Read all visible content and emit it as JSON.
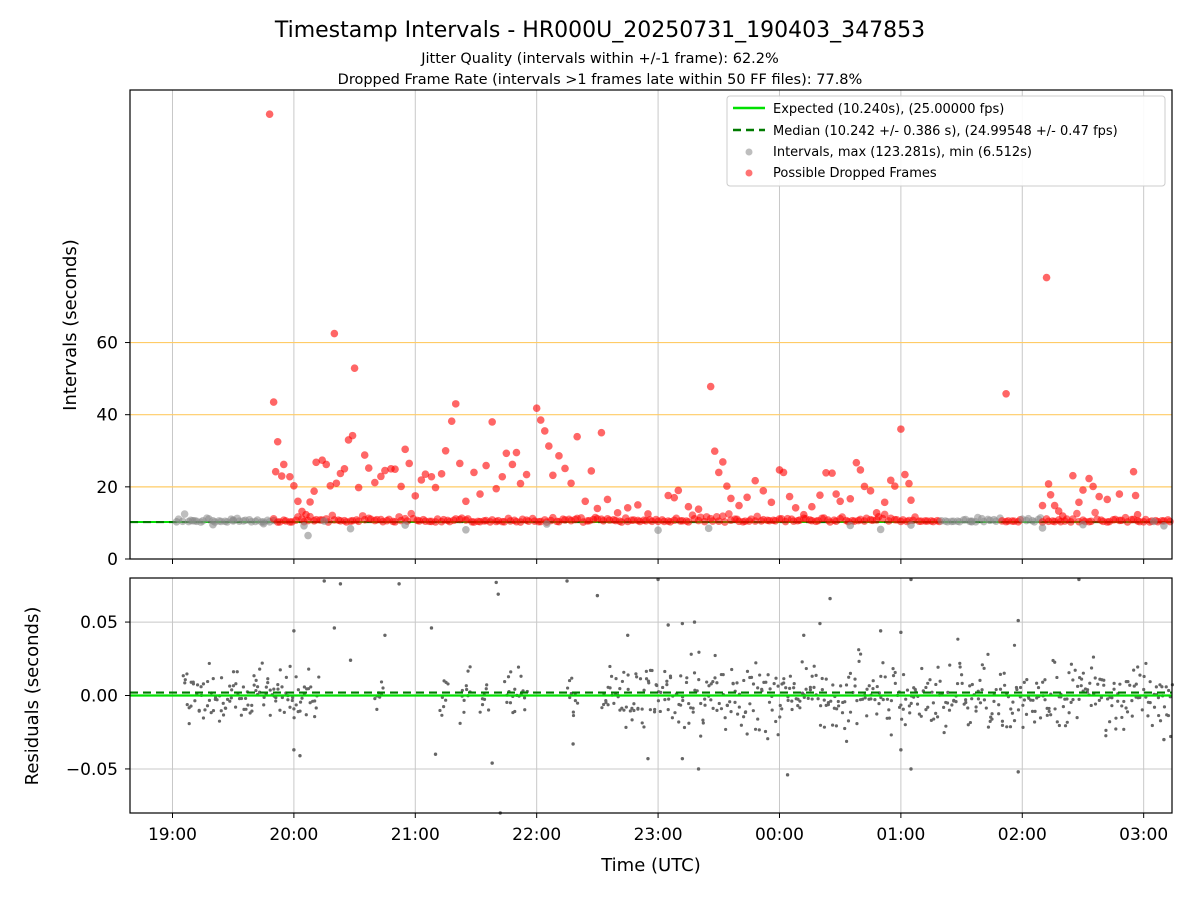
{
  "figure": {
    "title": "Timestamp Intervals - HR000U_20250731_190403_347853",
    "subtitle_line1": "Jitter Quality (intervals within +/-1 frame): 62.2%",
    "subtitle_line2": "Dropped Frame Rate (intervals >1 frames late within 50 FF files): 77.8%"
  },
  "colors": {
    "expected": "#00e000",
    "median": "#007a00",
    "intervals": "#888888",
    "dropped": "#ff0000",
    "threshold": "#ffcc66",
    "grid": "#c8c8c8",
    "residual": "#666666"
  },
  "chart_data": [
    {
      "type": "scatter",
      "xlabel": "",
      "ylabel": "Intervals (seconds)",
      "xlim": [
        "18:39",
        "03:14"
      ],
      "ylim": [
        0,
        130
      ],
      "yticks": [
        0,
        20,
        40,
        60
      ],
      "xticks": [
        "19:00",
        "20:00",
        "21:00",
        "22:00",
        "23:00",
        "00:00",
        "01:00",
        "02:00",
        "03:00"
      ],
      "threshold_lines": [
        20,
        40,
        60
      ],
      "grid": true,
      "legend_position": "top-right",
      "legend": [
        {
          "label": "Expected (10.240s), (25.00000 fps)",
          "kind": "solid-line",
          "color_key": "expected"
        },
        {
          "label": "Median (10.242 +/- 0.386 s), (24.99548 +/- 0.47 fps)",
          "kind": "dashed-line",
          "color_key": "median"
        },
        {
          "label": "Intervals, max (123.281s), min (6.512s)",
          "kind": "dot",
          "color_key": "intervals"
        },
        {
          "label": "Possible Dropped Frames",
          "kind": "dot",
          "color_key": "dropped"
        }
      ],
      "expected": 10.24,
      "median": 10.242,
      "series": [
        {
          "name": "Possible Dropped Frames",
          "points": [
            {
              "x": "19:48",
              "y": 123.3
            },
            {
              "x": "19:50",
              "y": 43.5
            },
            {
              "x": "19:52",
              "y": 32.5
            },
            {
              "x": "19:51",
              "y": 24.2
            },
            {
              "x": "19:54",
              "y": 23.0
            },
            {
              "x": "19:55",
              "y": 26.2
            },
            {
              "x": "19:58",
              "y": 22.8
            },
            {
              "x": "20:00",
              "y": 20.3
            },
            {
              "x": "20:02",
              "y": 16.0
            },
            {
              "x": "20:04",
              "y": 13.2
            },
            {
              "x": "20:06",
              "y": 12.3
            },
            {
              "x": "20:08",
              "y": 15.8
            },
            {
              "x": "20:10",
              "y": 18.8
            },
            {
              "x": "20:11",
              "y": 26.8
            },
            {
              "x": "20:14",
              "y": 27.4
            },
            {
              "x": "20:16",
              "y": 26.2
            },
            {
              "x": "20:18",
              "y": 20.3
            },
            {
              "x": "20:20",
              "y": 62.5
            },
            {
              "x": "20:21",
              "y": 21.0
            },
            {
              "x": "20:23",
              "y": 23.7
            },
            {
              "x": "20:25",
              "y": 25.0
            },
            {
              "x": "20:27",
              "y": 33.0
            },
            {
              "x": "20:29",
              "y": 34.2
            },
            {
              "x": "20:30",
              "y": 52.9
            },
            {
              "x": "20:32",
              "y": 19.8
            },
            {
              "x": "20:35",
              "y": 28.8
            },
            {
              "x": "20:37",
              "y": 25.2
            },
            {
              "x": "20:40",
              "y": 21.2
            },
            {
              "x": "20:43",
              "y": 22.9
            },
            {
              "x": "20:45",
              "y": 24.5
            },
            {
              "x": "20:48",
              "y": 25.0
            },
            {
              "x": "20:50",
              "y": 24.9
            },
            {
              "x": "20:53",
              "y": 20.1
            },
            {
              "x": "20:55",
              "y": 30.4
            },
            {
              "x": "20:57",
              "y": 26.5
            },
            {
              "x": "21:00",
              "y": 17.5
            },
            {
              "x": "21:03",
              "y": 21.9
            },
            {
              "x": "21:05",
              "y": 23.5
            },
            {
              "x": "21:08",
              "y": 22.8
            },
            {
              "x": "21:10",
              "y": 19.8
            },
            {
              "x": "21:13",
              "y": 23.6
            },
            {
              "x": "21:15",
              "y": 30.0
            },
            {
              "x": "21:18",
              "y": 38.2
            },
            {
              "x": "21:20",
              "y": 43.0
            },
            {
              "x": "21:22",
              "y": 26.5
            },
            {
              "x": "21:25",
              "y": 16.0
            },
            {
              "x": "21:29",
              "y": 24.0
            },
            {
              "x": "21:32",
              "y": 18.0
            },
            {
              "x": "21:35",
              "y": 25.9
            },
            {
              "x": "21:38",
              "y": 38.0
            },
            {
              "x": "21:40",
              "y": 19.5
            },
            {
              "x": "21:43",
              "y": 22.8
            },
            {
              "x": "21:45",
              "y": 29.3
            },
            {
              "x": "21:48",
              "y": 26.2
            },
            {
              "x": "21:50",
              "y": 29.5
            },
            {
              "x": "21:52",
              "y": 20.9
            },
            {
              "x": "21:55",
              "y": 23.4
            },
            {
              "x": "22:00",
              "y": 41.8
            },
            {
              "x": "22:02",
              "y": 38.5
            },
            {
              "x": "22:04",
              "y": 35.5
            },
            {
              "x": "22:06",
              "y": 31.3
            },
            {
              "x": "22:08",
              "y": 23.2
            },
            {
              "x": "22:11",
              "y": 28.6
            },
            {
              "x": "22:14",
              "y": 25.1
            },
            {
              "x": "22:17",
              "y": 21.0
            },
            {
              "x": "22:20",
              "y": 33.9
            },
            {
              "x": "22:24",
              "y": 16.0
            },
            {
              "x": "22:27",
              "y": 24.4
            },
            {
              "x": "22:30",
              "y": 14.0
            },
            {
              "x": "22:32",
              "y": 35.0
            },
            {
              "x": "22:35",
              "y": 16.5
            },
            {
              "x": "22:40",
              "y": 12.8
            },
            {
              "x": "22:45",
              "y": 14.2
            },
            {
              "x": "22:50",
              "y": 15.0
            },
            {
              "x": "22:55",
              "y": 12.5
            },
            {
              "x": "23:05",
              "y": 17.6
            },
            {
              "x": "23:08",
              "y": 17.0
            },
            {
              "x": "23:10",
              "y": 19.0
            },
            {
              "x": "23:15",
              "y": 14.5
            },
            {
              "x": "23:20",
              "y": 13.8
            },
            {
              "x": "23:26",
              "y": 47.8
            },
            {
              "x": "23:28",
              "y": 29.9
            },
            {
              "x": "23:30",
              "y": 24.0
            },
            {
              "x": "23:32",
              "y": 26.9
            },
            {
              "x": "23:34",
              "y": 20.2
            },
            {
              "x": "23:36",
              "y": 16.8
            },
            {
              "x": "23:40",
              "y": 14.8
            },
            {
              "x": "23:44",
              "y": 17.1
            },
            {
              "x": "23:48",
              "y": 21.7
            },
            {
              "x": "23:52",
              "y": 18.9
            },
            {
              "x": "23:56",
              "y": 15.7
            },
            {
              "x": "00:00",
              "y": 24.7
            },
            {
              "x": "00:02",
              "y": 24.0
            },
            {
              "x": "00:05",
              "y": 17.3
            },
            {
              "x": "00:08",
              "y": 14.2
            },
            {
              "x": "00:12",
              "y": 12.3
            },
            {
              "x": "00:16",
              "y": 14.5
            },
            {
              "x": "00:20",
              "y": 17.7
            },
            {
              "x": "00:23",
              "y": 23.9
            },
            {
              "x": "00:26",
              "y": 23.8
            },
            {
              "x": "00:28",
              "y": 18.0
            },
            {
              "x": "00:30",
              "y": 16.0
            },
            {
              "x": "00:35",
              "y": 16.7
            },
            {
              "x": "00:38",
              "y": 26.7
            },
            {
              "x": "00:40",
              "y": 24.7
            },
            {
              "x": "00:42",
              "y": 20.1
            },
            {
              "x": "00:45",
              "y": 18.9
            },
            {
              "x": "00:48",
              "y": 12.8
            },
            {
              "x": "00:52",
              "y": 15.7
            },
            {
              "x": "00:55",
              "y": 21.8
            },
            {
              "x": "00:57",
              "y": 20.2
            },
            {
              "x": "01:00",
              "y": 36.0
            },
            {
              "x": "01:02",
              "y": 23.4
            },
            {
              "x": "01:04",
              "y": 20.9
            },
            {
              "x": "01:05",
              "y": 16.3
            },
            {
              "x": "01:52",
              "y": 45.8
            },
            {
              "x": "02:10",
              "y": 14.8
            },
            {
              "x": "02:12",
              "y": 78.0
            },
            {
              "x": "02:13",
              "y": 20.8
            },
            {
              "x": "02:14",
              "y": 17.8
            },
            {
              "x": "02:16",
              "y": 14.8
            },
            {
              "x": "02:18",
              "y": 13.3
            },
            {
              "x": "02:20",
              "y": 11.9
            },
            {
              "x": "02:25",
              "y": 23.1
            },
            {
              "x": "02:28",
              "y": 15.7
            },
            {
              "x": "02:30",
              "y": 19.1
            },
            {
              "x": "02:33",
              "y": 22.3
            },
            {
              "x": "02:35",
              "y": 20.1
            },
            {
              "x": "02:38",
              "y": 17.3
            },
            {
              "x": "02:42",
              "y": 16.5
            },
            {
              "x": "02:48",
              "y": 18.0
            },
            {
              "x": "02:55",
              "y": 24.2
            },
            {
              "x": "02:56",
              "y": 17.6
            },
            {
              "x": "02:57",
              "y": 12.3
            }
          ]
        },
        {
          "name": "Intervals, max (123.281s), min (6.512s)",
          "points": [
            {
              "x": "19:02",
              "y": 10.3
            },
            {
              "x": "19:10",
              "y": 10.6
            },
            {
              "x": "19:20",
              "y": 9.5
            },
            {
              "x": "19:30",
              "y": 10.8
            },
            {
              "x": "19:45",
              "y": 9.8
            },
            {
              "x": "20:05",
              "y": 9.2
            },
            {
              "x": "20:07",
              "y": 6.5
            },
            {
              "x": "20:15",
              "y": 10.5
            },
            {
              "x": "20:28",
              "y": 8.4
            },
            {
              "x": "20:55",
              "y": 9.4
            },
            {
              "x": "21:25",
              "y": 8.1
            },
            {
              "x": "22:05",
              "y": 9.7
            },
            {
              "x": "23:00",
              "y": 8.0
            },
            {
              "x": "23:25",
              "y": 8.5
            },
            {
              "x": "00:35",
              "y": 9.3
            },
            {
              "x": "00:50",
              "y": 8.2
            },
            {
              "x": "01:05",
              "y": 9.4
            },
            {
              "x": "01:35",
              "y": 10.5
            },
            {
              "x": "02:10",
              "y": 8.6
            },
            {
              "x": "02:30",
              "y": 9.5
            },
            {
              "x": "03:05",
              "y": 10.4
            },
            {
              "x": "03:10",
              "y": 9.2
            }
          ]
        }
      ]
    },
    {
      "type": "scatter",
      "xlabel": "Time (UTC)",
      "ylabel": "Residuals (seconds)",
      "xlim": [
        "18:39",
        "03:14"
      ],
      "ylim": [
        -0.08,
        0.08
      ],
      "yticks": [
        0.05,
        0.0,
        -0.05
      ],
      "ytick_labels": [
        "0.05",
        "0.00",
        "−0.05"
      ],
      "xticks": [
        "19:00",
        "20:00",
        "21:00",
        "22:00",
        "23:00",
        "00:00",
        "01:00",
        "02:00",
        "03:00"
      ],
      "expected": 0.0,
      "median": 0.002,
      "grid": true,
      "series": [
        {
          "name": "",
          "points": [
            {
              "x": "20:00",
              "y": 0.044
            },
            {
              "x": "20:15",
              "y": 0.078
            },
            {
              "x": "20:20",
              "y": 0.046
            },
            {
              "x": "20:23",
              "y": 0.076
            },
            {
              "x": "20:28",
              "y": 0.024
            },
            {
              "x": "20:52",
              "y": 0.076
            },
            {
              "x": "20:45",
              "y": 0.041
            },
            {
              "x": "21:08",
              "y": 0.046
            },
            {
              "x": "21:40",
              "y": 0.077
            },
            {
              "x": "21:41",
              "y": 0.069
            },
            {
              "x": "22:15",
              "y": 0.078
            },
            {
              "x": "22:30",
              "y": 0.068
            },
            {
              "x": "22:45",
              "y": 0.041
            },
            {
              "x": "23:00",
              "y": 0.079
            },
            {
              "x": "23:05",
              "y": 0.048
            },
            {
              "x": "23:12",
              "y": 0.049
            },
            {
              "x": "23:18",
              "y": 0.05
            },
            {
              "x": "00:12",
              "y": 0.041
            },
            {
              "x": "00:20",
              "y": 0.049
            },
            {
              "x": "00:25",
              "y": 0.066
            },
            {
              "x": "00:50",
              "y": 0.044
            },
            {
              "x": "01:00",
              "y": 0.043
            },
            {
              "x": "01:05",
              "y": 0.079
            },
            {
              "x": "01:58",
              "y": 0.051
            },
            {
              "x": "02:28",
              "y": 0.079
            },
            {
              "x": "20:00",
              "y": -0.037
            },
            {
              "x": "20:03",
              "y": -0.041
            },
            {
              "x": "21:10",
              "y": -0.04
            },
            {
              "x": "21:38",
              "y": -0.046
            },
            {
              "x": "21:42",
              "y": -0.08
            },
            {
              "x": "22:18",
              "y": -0.033
            },
            {
              "x": "22:55",
              "y": -0.043
            },
            {
              "x": "23:12",
              "y": -0.043
            },
            {
              "x": "23:20",
              "y": -0.05
            },
            {
              "x": "00:04",
              "y": -0.054
            },
            {
              "x": "01:00",
              "y": -0.037
            },
            {
              "x": "01:05",
              "y": -0.05
            },
            {
              "x": "01:58",
              "y": -0.052
            },
            {
              "x": "03:10",
              "y": -0.03
            }
          ]
        }
      ]
    }
  ]
}
